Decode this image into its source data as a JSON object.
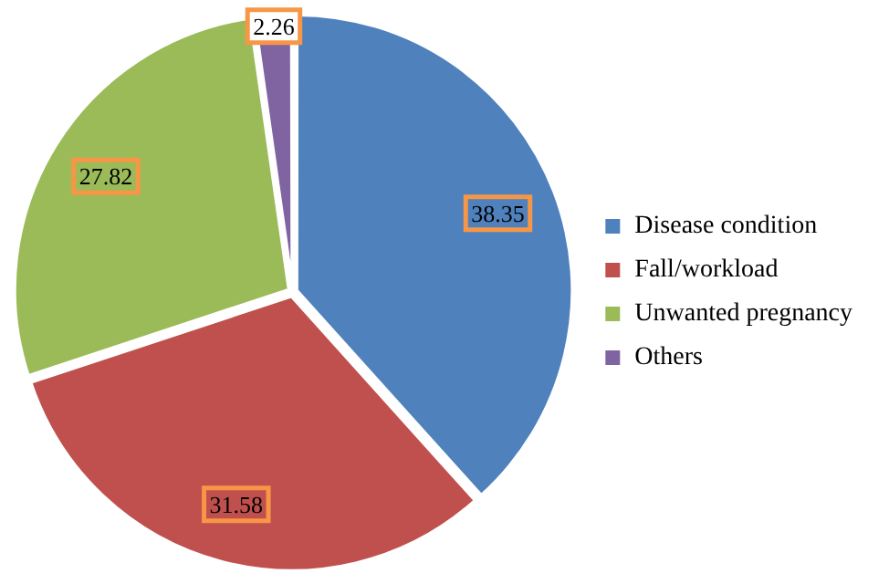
{
  "chart_data": {
    "type": "pie",
    "categories": [
      "Disease condition",
      "Fall/workload",
      "Unwanted pregnancy",
      "Others"
    ],
    "values": [
      38.35,
      31.58,
      27.82,
      2.26
    ],
    "colors": [
      "#4f81bd",
      "#c0504d",
      "#9bbb59",
      "#8064a2"
    ],
    "data_labels": true,
    "legend": "right"
  }
}
